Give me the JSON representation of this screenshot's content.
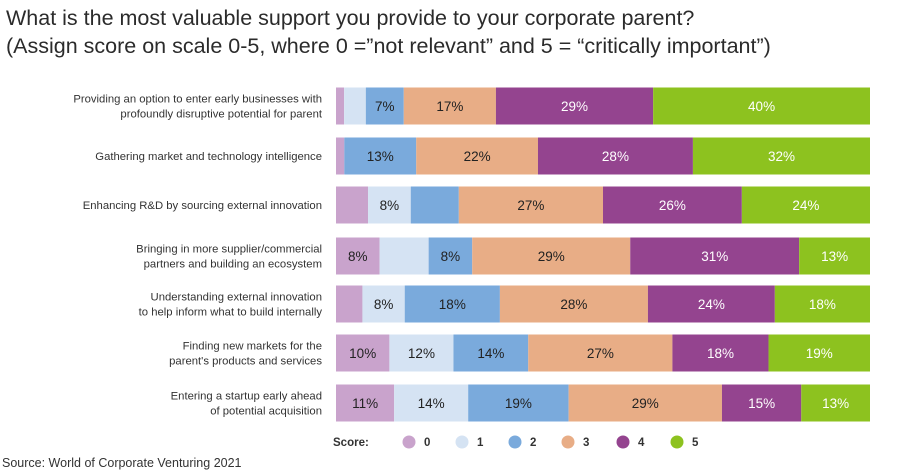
{
  "title_line1": "What is the most valuable support you provide to your corporate parent?",
  "title_line2": "(Assign score on scale 0-5, where 0 =”not relevant” and 5 = “critically important”)",
  "source": "Source: World of Corporate Venturing 2021",
  "legend_label": "Score:",
  "chart_data": {
    "type": "bar",
    "orientation": "horizontal",
    "stacked": true,
    "normalized": true,
    "title": "What is the most valuable support you provide to your corporate parent?",
    "subtitle": "(Assign score on scale 0-5, where 0 =”not relevant” and 5 = “critically important”)",
    "categories": [
      [
        "Providing an option to enter early businesses with",
        "profoundly disruptive potential for parent"
      ],
      [
        "Gathering market and technology intelligence"
      ],
      [
        "Enhancing R&D by sourcing external innovation"
      ],
      [
        "Bringing in more supplier/commercial",
        "partners and building an ecosystem"
      ],
      [
        "Understanding external innovation",
        "to help inform what to build internally"
      ],
      [
        "Finding new markets for the",
        "parent's products and services"
      ],
      [
        "Entering a startup early ahead",
        "of potential acquisition"
      ]
    ],
    "series": [
      {
        "name": "0",
        "color": "#c9a3cc",
        "text_color": "#222222",
        "values": [
          1.5,
          1.5,
          6,
          8,
          5,
          10,
          11
        ],
        "labels": [
          "",
          "",
          "",
          "8%",
          "",
          "10%",
          "11%"
        ]
      },
      {
        "name": "1",
        "color": "#d5e3f3",
        "text_color": "#222222",
        "values": [
          4,
          0,
          8,
          9,
          8,
          12,
          14
        ],
        "labels": [
          "",
          "",
          "8%",
          "",
          "8%",
          "12%",
          "14%"
        ]
      },
      {
        "name": "2",
        "color": "#7aaadc",
        "text_color": "#222222",
        "values": [
          7,
          13,
          9,
          8,
          18,
          14,
          19
        ],
        "labels": [
          "7%",
          "13%",
          "",
          "8%",
          "18%",
          "14%",
          "19%"
        ]
      },
      {
        "name": "3",
        "color": "#e8ad86",
        "text_color": "#222222",
        "values": [
          17,
          22,
          27,
          29,
          28,
          27,
          29
        ],
        "labels": [
          "17%",
          "22%",
          "27%",
          "29%",
          "28%",
          "27%",
          "29%"
        ]
      },
      {
        "name": "4",
        "color": "#94448f",
        "text_color": "#ffffff",
        "values": [
          29,
          28,
          26,
          31,
          24,
          18,
          15
        ],
        "labels": [
          "29%",
          "28%",
          "26%",
          "31%",
          "24%",
          "18%",
          "15%"
        ]
      },
      {
        "name": "5",
        "color": "#8dc21f",
        "text_color": "#ffffff",
        "values": [
          40,
          32,
          24,
          13,
          18,
          19,
          13
        ],
        "labels": [
          "40%",
          "32%",
          "24%",
          "13%",
          "18%",
          "19%",
          "13%"
        ]
      }
    ],
    "xlim": [
      0,
      100
    ],
    "legend_position": "bottom"
  }
}
